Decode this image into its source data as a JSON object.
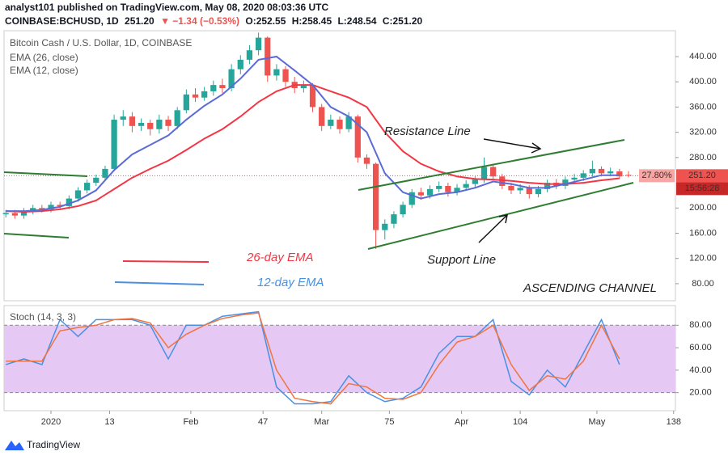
{
  "header": {
    "publisher": "analyst101 published on TradingView.com, May 08, 2020 08:03:36 UTC",
    "symbol": "COINBASE:BCHUSD, 1D",
    "last": "251.20",
    "change": "▼ −1.34 (−0.53%)",
    "open": "O:252.55",
    "high": "H:258.45",
    "low": "L:248.54",
    "close": "C:251.20"
  },
  "chart_data": [
    {
      "type": "candlestick",
      "title": "Bitcoin Cash / U.S. Dollar, 1D, COINBASE",
      "up_color": "#26a69a",
      "down_color": "#ef5350",
      "x": [
        -10,
        -8,
        -6,
        -4,
        -2,
        0,
        2,
        4,
        6,
        8,
        10,
        12,
        14,
        16,
        18,
        20,
        22,
        24,
        26,
        28,
        30,
        32,
        34,
        36,
        38,
        40,
        42,
        44,
        46,
        48,
        50,
        52,
        54,
        56,
        58,
        60,
        62,
        64,
        66,
        68,
        70,
        72,
        74,
        76,
        78,
        80,
        82,
        84,
        86,
        88,
        90,
        92,
        94,
        96,
        98,
        100,
        102,
        104,
        106,
        108,
        110,
        112,
        114,
        116,
        118,
        120,
        122,
        124,
        126,
        128
      ],
      "open": [
        190,
        192,
        188,
        195,
        200,
        198,
        205,
        203,
        215,
        228,
        240,
        248,
        262,
        340,
        345,
        330,
        335,
        325,
        340,
        330,
        355,
        380,
        375,
        385,
        395,
        390,
        420,
        435,
        450,
        470,
        410,
        420,
        400,
        390,
        395,
        360,
        330,
        340,
        325,
        345,
        280,
        270,
        165,
        175,
        190,
        205,
        225,
        220,
        230,
        235,
        225,
        232,
        238,
        245,
        265,
        250,
        235,
        228,
        232,
        222,
        230,
        240,
        235,
        245,
        248,
        255,
        262,
        255,
        258,
        252.55
      ],
      "high": [
        197,
        197,
        200,
        205,
        205,
        210,
        210,
        220,
        233,
        245,
        253,
        267,
        348,
        355,
        352,
        342,
        340,
        348,
        346,
        360,
        388,
        390,
        392,
        402,
        405,
        428,
        442,
        458,
        478,
        472,
        428,
        425,
        408,
        402,
        398,
        365,
        348,
        345,
        352,
        348,
        285,
        272,
        182,
        195,
        210,
        230,
        232,
        236,
        242,
        240,
        238,
        244,
        250,
        280,
        270,
        254,
        240,
        238,
        236,
        235,
        245,
        246,
        250,
        254,
        260,
        275,
        266,
        264,
        262,
        258.45
      ],
      "low": [
        185,
        183,
        183,
        190,
        193,
        193,
        198,
        198,
        210,
        223,
        235,
        243,
        258,
        330,
        320,
        322,
        315,
        318,
        322,
        325,
        350,
        368,
        370,
        378,
        382,
        385,
        412,
        428,
        442,
        400,
        402,
        392,
        382,
        383,
        352,
        322,
        325,
        318,
        320,
        272,
        262,
        135,
        150,
        168,
        185,
        200,
        213,
        215,
        225,
        218,
        220,
        227,
        232,
        240,
        244,
        230,
        222,
        222,
        215,
        217,
        225,
        230,
        230,
        240,
        243,
        250,
        250,
        250,
        246,
        248.54
      ],
      "close": [
        192,
        188,
        195,
        200,
        198,
        205,
        203,
        215,
        228,
        240,
        248,
        262,
        340,
        345,
        330,
        335,
        325,
        340,
        330,
        355,
        380,
        375,
        385,
        395,
        390,
        420,
        435,
        450,
        470,
        410,
        420,
        400,
        390,
        395,
        360,
        330,
        340,
        325,
        345,
        280,
        270,
        165,
        175,
        190,
        205,
        225,
        220,
        230,
        235,
        225,
        232,
        238,
        245,
        265,
        250,
        235,
        228,
        232,
        222,
        230,
        240,
        235,
        245,
        248,
        255,
        262,
        255,
        258,
        250,
        251.2
      ],
      "series": [
        {
          "name": "EMA (26, close)",
          "color": "#f23645",
          "x": [
            -10,
            -6,
            -2,
            2,
            6,
            10,
            14,
            18,
            22,
            26,
            30,
            34,
            38,
            42,
            46,
            50,
            54,
            58,
            62,
            66,
            70,
            74,
            78,
            82,
            86,
            90,
            94,
            98,
            102,
            106,
            110,
            114,
            118,
            122,
            126
          ],
          "values": [
            195,
            194,
            195,
            198,
            203,
            212,
            230,
            248,
            262,
            275,
            292,
            310,
            325,
            345,
            368,
            385,
            395,
            395,
            385,
            375,
            360,
            320,
            290,
            270,
            258,
            250,
            246,
            245,
            243,
            240,
            238,
            238,
            240,
            244,
            247
          ]
        },
        {
          "name": "EMA (12, close)",
          "color": "#5b6bd5",
          "x": [
            -10,
            -6,
            -2,
            2,
            6,
            10,
            14,
            18,
            22,
            26,
            30,
            34,
            38,
            42,
            46,
            50,
            54,
            58,
            62,
            66,
            70,
            74,
            78,
            82,
            86,
            90,
            94,
            98,
            102,
            106,
            110,
            114,
            118,
            122,
            126
          ],
          "values": [
            195,
            195,
            197,
            202,
            212,
            228,
            260,
            285,
            300,
            315,
            340,
            362,
            380,
            405,
            435,
            440,
            418,
            395,
            360,
            345,
            320,
            255,
            225,
            215,
            222,
            225,
            232,
            242,
            238,
            232,
            232,
            238,
            245,
            252,
            252
          ]
        }
      ],
      "xlim": [
        -10.4,
        138.4
      ],
      "ylim": [
        53,
        481
      ],
      "xticks": [
        {
          "value": 0,
          "label": "2020"
        },
        13,
        {
          "value": 31,
          "label": "Feb"
        },
        47,
        {
          "value": 60,
          "label": "Mar"
        },
        75,
        {
          "value": 91,
          "label": "Apr"
        },
        104,
        {
          "value": 121,
          "label": "May"
        },
        138
      ],
      "yticks": [
        {
          "value": 80,
          "label": "80.00"
        },
        {
          "value": 120,
          "label": "120.00"
        },
        {
          "value": 160,
          "label": "160.00"
        },
        {
          "value": 200,
          "label": "200.00"
        },
        {
          "value": 280,
          "label": "280.00"
        },
        {
          "value": 320,
          "label": "320.00"
        },
        {
          "value": 360,
          "label": "360.00"
        },
        {
          "value": 400,
          "label": "400.00"
        },
        {
          "value": 440,
          "label": "440.00"
        }
      ],
      "last_price": 251.2,
      "last_price_label": "251.20",
      "change_label": "27.80%",
      "countdown": "15:56:28",
      "annotations": [
        "Resistance Line",
        "Support Line",
        "26-day EMA",
        "12-day EMA",
        "ASCENDING CHANNEL"
      ]
    },
    {
      "type": "line",
      "title": "Stoch (14, 3, 3)",
      "x": [
        -10,
        -6,
        -2,
        2,
        6,
        10,
        14,
        18,
        22,
        26,
        30,
        34,
        38,
        42,
        46,
        50,
        54,
        58,
        62,
        66,
        70,
        74,
        78,
        82,
        86,
        90,
        94,
        98,
        102,
        106,
        110,
        114,
        118,
        122,
        126
      ],
      "series": [
        {
          "color": "#4a90e2",
          "values": [
            45,
            50,
            45,
            85,
            70,
            85,
            85,
            85,
            80,
            50,
            80,
            80,
            88,
            90,
            92,
            25,
            10,
            10,
            12,
            35,
            20,
            12,
            15,
            25,
            55,
            70,
            70,
            85,
            30,
            18,
            40,
            25,
            55,
            85,
            45
          ]
        },
        {
          "color": "#f0743e",
          "values": [
            48,
            48,
            48,
            75,
            78,
            80,
            85,
            86,
            82,
            60,
            72,
            80,
            86,
            89,
            91,
            40,
            15,
            12,
            10,
            28,
            25,
            15,
            14,
            20,
            45,
            65,
            70,
            80,
            45,
            22,
            35,
            32,
            48,
            80,
            50
          ]
        }
      ],
      "band": [
        20,
        80
      ],
      "band_color": "#e6c8f5",
      "xlim": [
        -10.4,
        138.4
      ],
      "ylim": [
        3.9,
        97.5
      ],
      "yticks": [
        {
          "value": 20,
          "label": "20.00"
        },
        {
          "value": 40,
          "label": "40.00"
        },
        {
          "value": 60,
          "label": "60.00"
        },
        {
          "value": 80,
          "label": "80.00"
        }
      ]
    }
  ],
  "footer": "TradingView"
}
